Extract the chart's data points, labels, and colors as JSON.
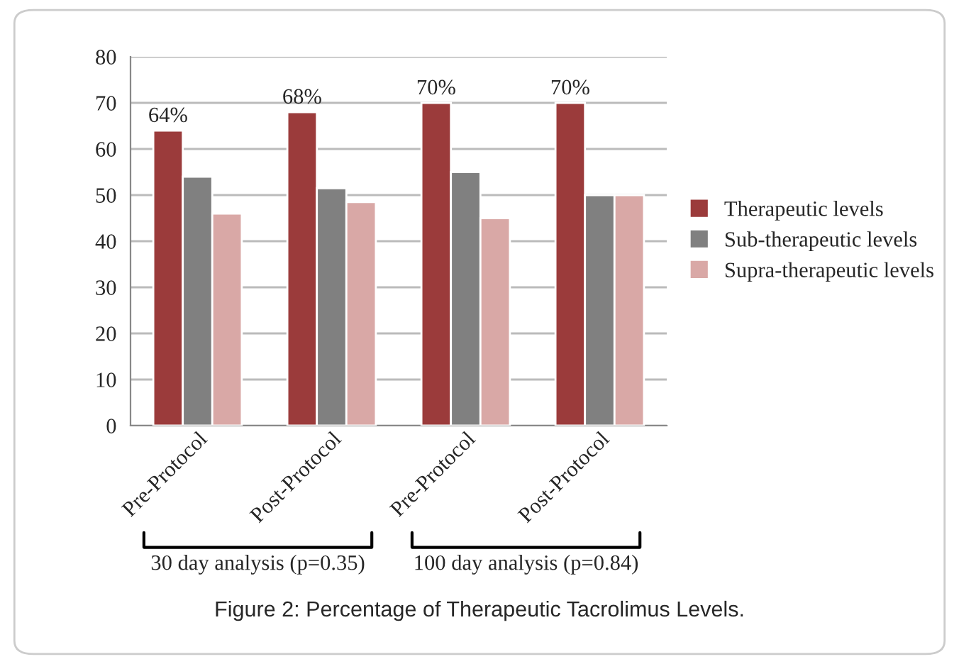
{
  "chart_data": {
    "type": "bar",
    "categories": [
      "Pre-Protocol",
      "Post-Protocol",
      "Pre-Protocol",
      "Post-Protocol"
    ],
    "series": [
      {
        "name": "Therapeutic levels",
        "color": "#9b3b3b",
        "values": [
          64,
          68,
          70,
          70
        ],
        "value_labels": [
          "64%",
          "68%",
          "70%",
          "70%"
        ]
      },
      {
        "name": "Sub-therapeutic levels",
        "color": "#808080",
        "values": [
          54,
          51.5,
          55,
          50
        ]
      },
      {
        "name": "Supra-therapeutic levels",
        "color": "#d9a8a6",
        "values": [
          46,
          48.5,
          45,
          50
        ]
      }
    ],
    "ylim": [
      0,
      80
    ],
    "yticks": [
      0,
      10,
      20,
      30,
      40,
      50,
      60,
      70,
      80
    ],
    "grid": "y",
    "legend": "right",
    "annotations": [
      "30 day analysis (p=0.35)",
      "100 day analysis (p=0.84)",
      "Figure 2: Percentage of Therapeutic Tacrolimus Levels."
    ]
  }
}
